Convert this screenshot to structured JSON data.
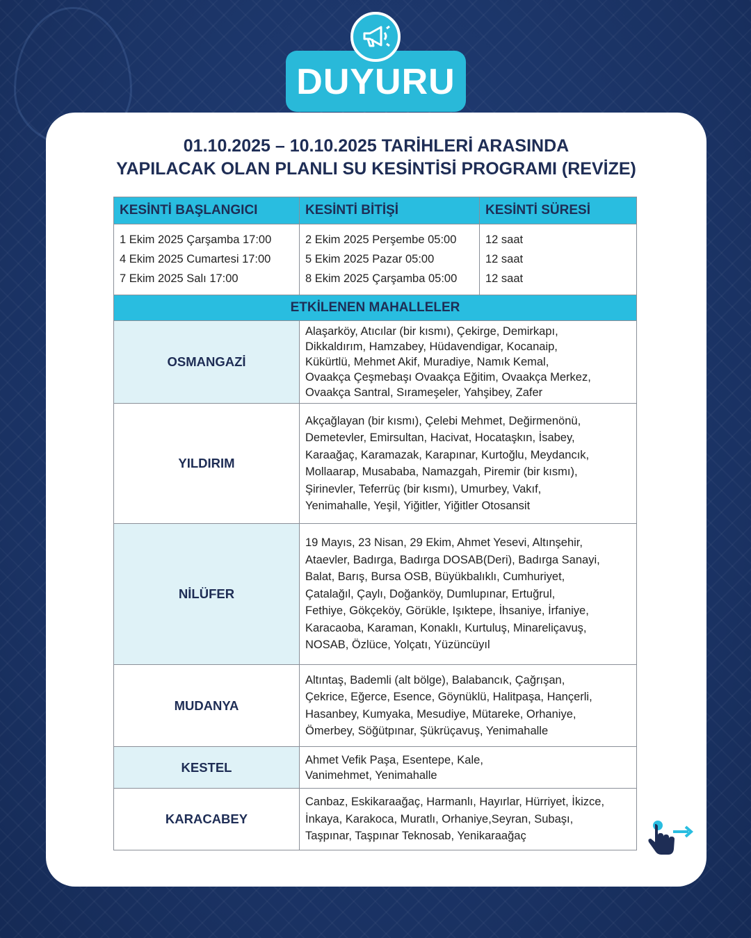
{
  "badge": {
    "label": "DUYURU",
    "icon": "megaphone-icon"
  },
  "title": {
    "line1": "01.10.2025 – 10.10.2025 TARİHLERİ ARASINDA",
    "line2": "YAPILACAK OLAN PLANLI SU KESİNTİSİ PROGRAMI (REVİZE)"
  },
  "schedule": {
    "headers": [
      "KESİNTİ BAŞLANGICI",
      "KESİNTİ BİTİŞİ",
      "KESİNTİ SÜRESİ"
    ],
    "rows": [
      [
        "1 Ekim 2025 Çarşamba 17:00",
        "2 Ekim 2025 Perşembe 05:00",
        "12 saat"
      ],
      [
        "4 Ekim 2025 Cumartesi 17:00",
        "5 Ekim 2025 Pazar 05:00",
        "12 saat"
      ],
      [
        "7 Ekim 2025 Salı 17:00",
        "8 Ekim 2025 Çarşamba 05:00",
        "12 saat"
      ]
    ]
  },
  "affected": {
    "header": "ETKİLENEN MAHALLELER",
    "districts": [
      {
        "name": "OSMANGAZİ",
        "lines": [
          "Alaşarköy, Atıcılar (bir kısmı), Çekirge, Demirkapı,",
          "Dikkaldırım, Hamzabey, Hüdavendigar, Kocanaip,",
          "Kükürtlü, Mehmet Akif, Muradiye, Namık Kemal,",
          "Ovaakça Çeşmebaşı Ovaakça Eğitim, Ovaakça Merkez,",
          "Ovaakça Santral, Sırameşeler, Yahşibey, Zafer"
        ]
      },
      {
        "name": "YILDIRIM",
        "lines": [
          "Akçağlayan (bir kısmı), Çelebi Mehmet, Değirmenönü,",
          "Demetevler, Emirsultan, Hacivat, Hocataşkın, İsabey,",
          "Karaağaç, Karamazak, Karapınar, Kurtoğlu, Meydancık,",
          "Mollaarap, Musababa, Namazgah, Piremir (bir kısmı),",
          "Şirinevler, Teferrüç (bir kısmı), Umurbey, Vakıf,",
          "Yenimahalle, Yeşil, Yiğitler, Yiğitler Otosansit"
        ]
      },
      {
        "name": "NİLÜFER",
        "lines": [
          "19 Mayıs, 23 Nisan, 29 Ekim, Ahmet Yesevi, Altınşehir,",
          "Ataevler, Badırga, Badırga DOSAB(Deri), Badırga Sanayi,",
          "Balat, Barış, Bursa OSB, Büyükbalıklı, Cumhuriyet,",
          "Çatalağıl, Çaylı, Doğanköy, Dumlupınar, Ertuğrul,",
          "Fethiye, Gökçeköy, Görükle, Işıktepe, İhsaniye, İrfaniye,",
          "Karacaoba, Karaman, Konaklı, Kurtuluş, Minareliçavuş,",
          "NOSAB, Özlüce, Yolçatı, Yüzüncüyıl"
        ]
      },
      {
        "name": "MUDANYA",
        "lines": [
          "Altıntaş, Bademli (alt bölge), Balabancık, Çağrışan,",
          "Çekrice, Eğerce, Esence, Göynüklü, Halitpaşa, Hançerli,",
          "Hasanbey, Kumyaka, Mesudiye, Mütareke, Orhaniye,",
          "Ömerbey, Söğütpınar, Şükrüçavuş, Yenimahalle"
        ]
      },
      {
        "name": "KESTEL",
        "lines": [
          "Ahmet Vefik Paşa, Esentepe, Kale,",
          "Vanimehmet, Yenimahalle"
        ]
      },
      {
        "name": "KARACABEY",
        "lines": [
          "Canbaz, Eskikaraağaç, Harmanlı, Hayırlar, Hürriyet, İkizce,",
          "İnkaya, Karakoca, Muratlı, Orhaniye,Seyran, Subaşı,",
          "Taşpınar, Taşpınar Teknosab, Yenikaraağaç"
        ]
      }
    ]
  },
  "swipe_icon": "swipe-hand-icon",
  "colors": {
    "accent": "#29bde0",
    "background": "#1c3868",
    "text": "#1e2d55",
    "district_fill": "#dff2f7"
  }
}
